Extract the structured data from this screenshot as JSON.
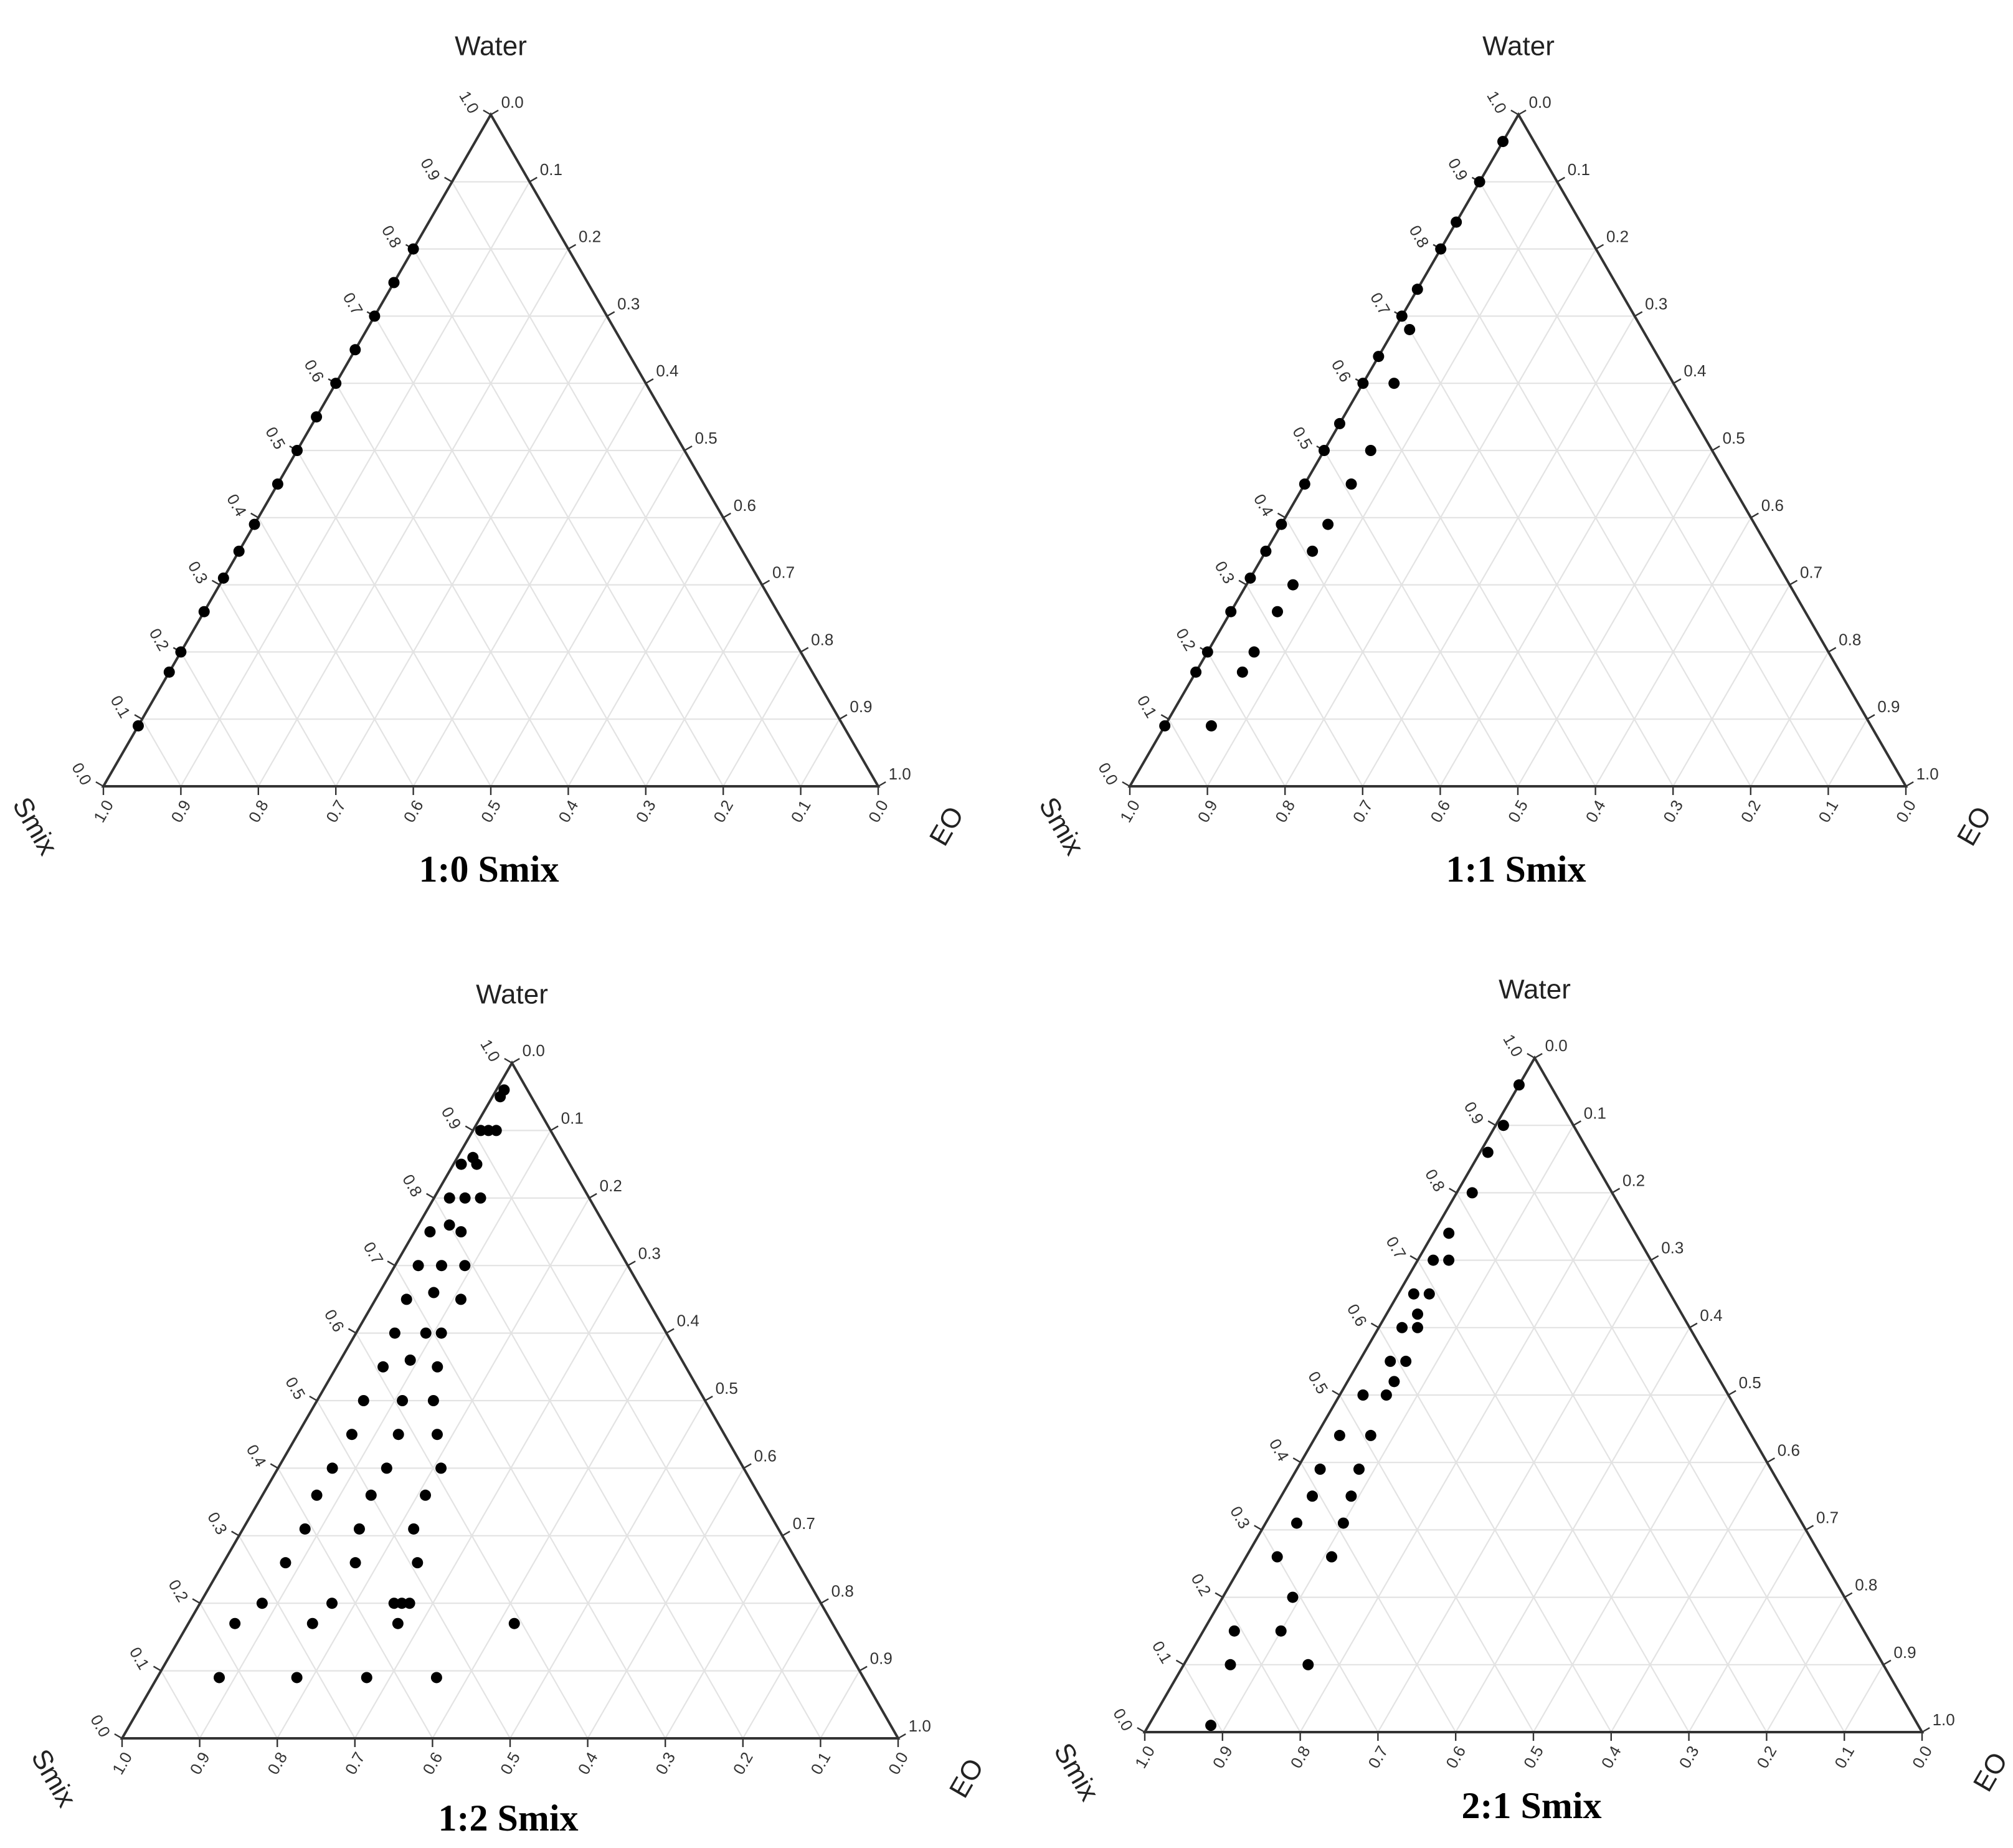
{
  "chart_data": [
    {
      "type": "scatter",
      "title": "1:0 Smix",
      "axes": {
        "top": "Water",
        "left": "Smix",
        "right": "EO"
      },
      "ticks": [
        "0.0",
        "0.1",
        "0.2",
        "0.3",
        "0.4",
        "0.5",
        "0.6",
        "0.7",
        "0.8",
        "0.9",
        "1.0"
      ],
      "grid": true,
      "points": [
        {
          "water": 0.8,
          "smix": 0.2,
          "eo": 0.0
        },
        {
          "water": 0.75,
          "smix": 0.25,
          "eo": 0.0
        },
        {
          "water": 0.7,
          "smix": 0.3,
          "eo": 0.0
        },
        {
          "water": 0.65,
          "smix": 0.35,
          "eo": 0.0
        },
        {
          "water": 0.6,
          "smix": 0.4,
          "eo": 0.0
        },
        {
          "water": 0.55,
          "smix": 0.45,
          "eo": 0.0
        },
        {
          "water": 0.5,
          "smix": 0.5,
          "eo": 0.0
        },
        {
          "water": 0.45,
          "smix": 0.55,
          "eo": 0.0
        },
        {
          "water": 0.39,
          "smix": 0.61,
          "eo": 0.0
        },
        {
          "water": 0.35,
          "smix": 0.65,
          "eo": 0.0
        },
        {
          "water": 0.31,
          "smix": 0.69,
          "eo": 0.0
        },
        {
          "water": 0.26,
          "smix": 0.74,
          "eo": 0.0
        },
        {
          "water": 0.2,
          "smix": 0.8,
          "eo": 0.0
        },
        {
          "water": 0.17,
          "smix": 0.83,
          "eo": 0.0
        },
        {
          "water": 0.09,
          "smix": 0.91,
          "eo": 0.0
        }
      ]
    },
    {
      "type": "scatter",
      "title": "1:1 Smix",
      "axes": {
        "top": "Water",
        "left": "Smix",
        "right": "EO"
      },
      "ticks": [
        "0.0",
        "0.1",
        "0.2",
        "0.3",
        "0.4",
        "0.5",
        "0.6",
        "0.7",
        "0.8",
        "0.9",
        "1.0"
      ],
      "grid": true,
      "points": [
        {
          "water": 0.96,
          "smix": 0.04,
          "eo": 0.0
        },
        {
          "water": 0.9,
          "smix": 0.1,
          "eo": 0.0
        },
        {
          "water": 0.84,
          "smix": 0.16,
          "eo": 0.0
        },
        {
          "water": 0.8,
          "smix": 0.2,
          "eo": 0.0
        },
        {
          "water": 0.74,
          "smix": 0.26,
          "eo": 0.0
        },
        {
          "water": 0.7,
          "smix": 0.3,
          "eo": 0.0
        },
        {
          "water": 0.68,
          "smix": 0.3,
          "eo": 0.02
        },
        {
          "water": 0.64,
          "smix": 0.36,
          "eo": 0.0
        },
        {
          "water": 0.6,
          "smix": 0.4,
          "eo": 0.0
        },
        {
          "water": 0.6,
          "smix": 0.36,
          "eo": 0.04
        },
        {
          "water": 0.54,
          "smix": 0.46,
          "eo": 0.0
        },
        {
          "water": 0.5,
          "smix": 0.5,
          "eo": 0.0
        },
        {
          "water": 0.5,
          "smix": 0.44,
          "eo": 0.06
        },
        {
          "water": 0.45,
          "smix": 0.55,
          "eo": 0.0
        },
        {
          "water": 0.45,
          "smix": 0.49,
          "eo": 0.06
        },
        {
          "water": 0.39,
          "smix": 0.61,
          "eo": 0.0
        },
        {
          "water": 0.39,
          "smix": 0.55,
          "eo": 0.06
        },
        {
          "water": 0.35,
          "smix": 0.65,
          "eo": 0.0
        },
        {
          "water": 0.35,
          "smix": 0.59,
          "eo": 0.06
        },
        {
          "water": 0.31,
          "smix": 0.69,
          "eo": 0.0
        },
        {
          "water": 0.3,
          "smix": 0.64,
          "eo": 0.06
        },
        {
          "water": 0.26,
          "smix": 0.74,
          "eo": 0.0
        },
        {
          "water": 0.26,
          "smix": 0.68,
          "eo": 0.06
        },
        {
          "water": 0.2,
          "smix": 0.8,
          "eo": 0.0
        },
        {
          "water": 0.2,
          "smix": 0.74,
          "eo": 0.06
        },
        {
          "water": 0.17,
          "smix": 0.83,
          "eo": 0.0
        },
        {
          "water": 0.17,
          "smix": 0.77,
          "eo": 0.06
        },
        {
          "water": 0.09,
          "smix": 0.91,
          "eo": 0.0
        },
        {
          "water": 0.09,
          "smix": 0.85,
          "eo": 0.06
        }
      ]
    },
    {
      "type": "scatter",
      "title": "1:2 Smix",
      "axes": {
        "top": "Water",
        "left": "Smix",
        "right": "EO"
      },
      "ticks": [
        "0.0",
        "0.1",
        "0.2",
        "0.3",
        "0.4",
        "0.5",
        "0.6",
        "0.7",
        "0.8",
        "0.9",
        "1.0"
      ],
      "grid": true,
      "points": [
        {
          "water": 0.96,
          "smix": 0.03,
          "eo": 0.01
        },
        {
          "water": 0.95,
          "smix": 0.04,
          "eo": 0.01
        },
        {
          "water": 0.9,
          "smix": 0.09,
          "eo": 0.01
        },
        {
          "water": 0.9,
          "smix": 0.08,
          "eo": 0.02
        },
        {
          "water": 0.9,
          "smix": 0.07,
          "eo": 0.03
        },
        {
          "water": 0.85,
          "smix": 0.14,
          "eo": 0.01
        },
        {
          "water": 0.86,
          "smix": 0.12,
          "eo": 0.02
        },
        {
          "water": 0.85,
          "smix": 0.12,
          "eo": 0.03
        },
        {
          "water": 0.8,
          "smix": 0.18,
          "eo": 0.02
        },
        {
          "water": 0.8,
          "smix": 0.16,
          "eo": 0.04
        },
        {
          "water": 0.8,
          "smix": 0.14,
          "eo": 0.06
        },
        {
          "water": 0.75,
          "smix": 0.23,
          "eo": 0.02
        },
        {
          "water": 0.76,
          "smix": 0.2,
          "eo": 0.04
        },
        {
          "water": 0.75,
          "smix": 0.19,
          "eo": 0.06
        },
        {
          "water": 0.7,
          "smix": 0.27,
          "eo": 0.03
        },
        {
          "water": 0.7,
          "smix": 0.24,
          "eo": 0.06
        },
        {
          "water": 0.7,
          "smix": 0.21,
          "eo": 0.09
        },
        {
          "water": 0.65,
          "smix": 0.31,
          "eo": 0.04
        },
        {
          "water": 0.66,
          "smix": 0.27,
          "eo": 0.07
        },
        {
          "water": 0.65,
          "smix": 0.24,
          "eo": 0.11
        },
        {
          "water": 0.6,
          "smix": 0.35,
          "eo": 0.05
        },
        {
          "water": 0.6,
          "smix": 0.31,
          "eo": 0.09
        },
        {
          "water": 0.6,
          "smix": 0.29,
          "eo": 0.11
        },
        {
          "water": 0.55,
          "smix": 0.39,
          "eo": 0.06
        },
        {
          "water": 0.56,
          "smix": 0.35,
          "eo": 0.09
        },
        {
          "water": 0.55,
          "smix": 0.32,
          "eo": 0.13
        },
        {
          "water": 0.5,
          "smix": 0.44,
          "eo": 0.06
        },
        {
          "water": 0.5,
          "smix": 0.39,
          "eo": 0.11
        },
        {
          "water": 0.5,
          "smix": 0.35,
          "eo": 0.15
        },
        {
          "water": 0.45,
          "smix": 0.48,
          "eo": 0.07
        },
        {
          "water": 0.45,
          "smix": 0.42,
          "eo": 0.13
        },
        {
          "water": 0.45,
          "smix": 0.37,
          "eo": 0.18
        },
        {
          "water": 0.4,
          "smix": 0.53,
          "eo": 0.07
        },
        {
          "water": 0.4,
          "smix": 0.46,
          "eo": 0.14
        },
        {
          "water": 0.4,
          "smix": 0.39,
          "eo": 0.21
        },
        {
          "water": 0.36,
          "smix": 0.57,
          "eo": 0.07
        },
        {
          "water": 0.36,
          "smix": 0.5,
          "eo": 0.14
        },
        {
          "water": 0.36,
          "smix": 0.43,
          "eo": 0.21
        },
        {
          "water": 0.31,
          "smix": 0.61,
          "eo": 0.08
        },
        {
          "water": 0.31,
          "smix": 0.54,
          "eo": 0.15
        },
        {
          "water": 0.31,
          "smix": 0.47,
          "eo": 0.22
        },
        {
          "water": 0.26,
          "smix": 0.66,
          "eo": 0.08
        },
        {
          "water": 0.26,
          "smix": 0.57,
          "eo": 0.17
        },
        {
          "water": 0.26,
          "smix": 0.49,
          "eo": 0.25
        },
        {
          "water": 0.2,
          "smix": 0.72,
          "eo": 0.08
        },
        {
          "water": 0.2,
          "smix": 0.63,
          "eo": 0.17
        },
        {
          "water": 0.2,
          "smix": 0.55,
          "eo": 0.25
        },
        {
          "water": 0.2,
          "smix": 0.54,
          "eo": 0.26
        },
        {
          "water": 0.2,
          "smix": 0.53,
          "eo": 0.27
        },
        {
          "water": 0.17,
          "smix": 0.77,
          "eo": 0.06
        },
        {
          "water": 0.17,
          "smix": 0.67,
          "eo": 0.16
        },
        {
          "water": 0.17,
          "smix": 0.56,
          "eo": 0.27
        },
        {
          "water": 0.17,
          "smix": 0.41,
          "eo": 0.42
        },
        {
          "water": 0.09,
          "smix": 0.83,
          "eo": 0.08
        },
        {
          "water": 0.09,
          "smix": 0.73,
          "eo": 0.18
        },
        {
          "water": 0.09,
          "smix": 0.64,
          "eo": 0.27
        },
        {
          "water": 0.09,
          "smix": 0.55,
          "eo": 0.36
        }
      ]
    },
    {
      "type": "scatter",
      "title": "2:1 Smix",
      "axes": {
        "top": "Water",
        "left": "Smix",
        "right": "EO"
      },
      "ticks": [
        "0.0",
        "0.1",
        "0.2",
        "0.3",
        "0.4",
        "0.5",
        "0.6",
        "0.7",
        "0.8",
        "0.9",
        "1.0"
      ],
      "grid": true,
      "points": [
        {
          "water": 0.96,
          "smix": 0.04,
          "eo": 0.0
        },
        {
          "water": 0.9,
          "smix": 0.09,
          "eo": 0.01
        },
        {
          "water": 0.86,
          "smix": 0.13,
          "eo": 0.01
        },
        {
          "water": 0.8,
          "smix": 0.18,
          "eo": 0.02
        },
        {
          "water": 0.74,
          "smix": 0.24,
          "eo": 0.02
        },
        {
          "water": 0.7,
          "smix": 0.28,
          "eo": 0.02
        },
        {
          "water": 0.7,
          "smix": 0.26,
          "eo": 0.04
        },
        {
          "water": 0.65,
          "smix": 0.33,
          "eo": 0.02
        },
        {
          "water": 0.65,
          "smix": 0.31,
          "eo": 0.04
        },
        {
          "water": 0.62,
          "smix": 0.34,
          "eo": 0.04
        },
        {
          "water": 0.6,
          "smix": 0.37,
          "eo": 0.03
        },
        {
          "water": 0.6,
          "smix": 0.35,
          "eo": 0.05
        },
        {
          "water": 0.55,
          "smix": 0.41,
          "eo": 0.04
        },
        {
          "water": 0.55,
          "smix": 0.39,
          "eo": 0.06
        },
        {
          "water": 0.52,
          "smix": 0.42,
          "eo": 0.06
        },
        {
          "water": 0.5,
          "smix": 0.47,
          "eo": 0.03
        },
        {
          "water": 0.5,
          "smix": 0.44,
          "eo": 0.06
        },
        {
          "water": 0.44,
          "smix": 0.53,
          "eo": 0.03
        },
        {
          "water": 0.44,
          "smix": 0.49,
          "eo": 0.07
        },
        {
          "water": 0.39,
          "smix": 0.58,
          "eo": 0.03
        },
        {
          "water": 0.39,
          "smix": 0.53,
          "eo": 0.08
        },
        {
          "water": 0.35,
          "smix": 0.61,
          "eo": 0.04
        },
        {
          "water": 0.35,
          "smix": 0.56,
          "eo": 0.09
        },
        {
          "water": 0.31,
          "smix": 0.65,
          "eo": 0.04
        },
        {
          "water": 0.31,
          "smix": 0.59,
          "eo": 0.1
        },
        {
          "water": 0.26,
          "smix": 0.7,
          "eo": 0.04
        },
        {
          "water": 0.26,
          "smix": 0.63,
          "eo": 0.11
        },
        {
          "water": 0.2,
          "smix": 0.71,
          "eo": 0.09
        },
        {
          "water": 0.15,
          "smix": 0.81,
          "eo": 0.04
        },
        {
          "water": 0.15,
          "smix": 0.75,
          "eo": 0.1
        },
        {
          "water": 0.1,
          "smix": 0.84,
          "eo": 0.06
        },
        {
          "water": 0.1,
          "smix": 0.74,
          "eo": 0.16
        },
        {
          "water": 0.01,
          "smix": 0.91,
          "eo": 0.08
        }
      ]
    }
  ]
}
